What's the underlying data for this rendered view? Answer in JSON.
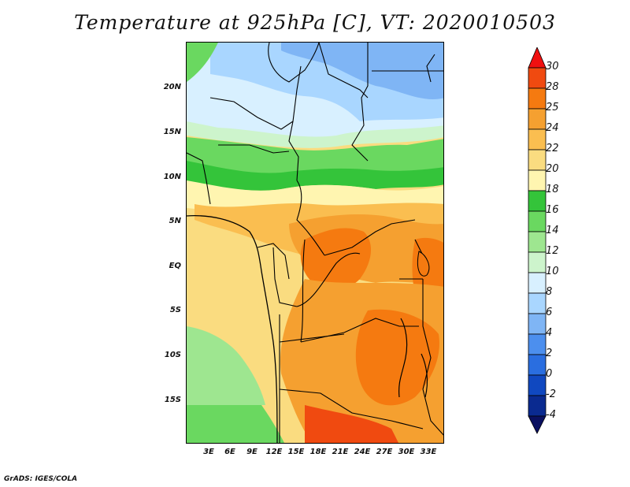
{
  "title": "Temperature at 925hPa [C], VT: 2020010503",
  "credit": "GrADS: IGES/COLA",
  "lat_labels": [
    "20N",
    "15N",
    "10N",
    "5N",
    "EQ",
    "5S",
    "10S",
    "15S"
  ],
  "lon_labels": [
    "3E",
    "6E",
    "9E",
    "12E",
    "15E",
    "18E",
    "21E",
    "24E",
    "27E",
    "30E",
    "33E"
  ],
  "colorbar": {
    "levels": [
      "30",
      "28",
      "25",
      "24",
      "22",
      "20",
      "18",
      "16",
      "14",
      "12",
      "10",
      "8",
      "6",
      "4",
      "2",
      "0",
      "-2",
      "-4"
    ],
    "colors": [
      "#f01010",
      "#f04a10",
      "#f57a10",
      "#f5a030",
      "#fabe50",
      "#fadc80",
      "#fff5b0",
      "#34c43a",
      "#6ad860",
      "#9ee690",
      "#cdf4cc",
      "#d8f0ff",
      "#a9d6ff",
      "#7fb5f5",
      "#4c8fee",
      "#2a6ee0",
      "#1048c0",
      "#0a2a90",
      "#0a1060"
    ]
  }
}
